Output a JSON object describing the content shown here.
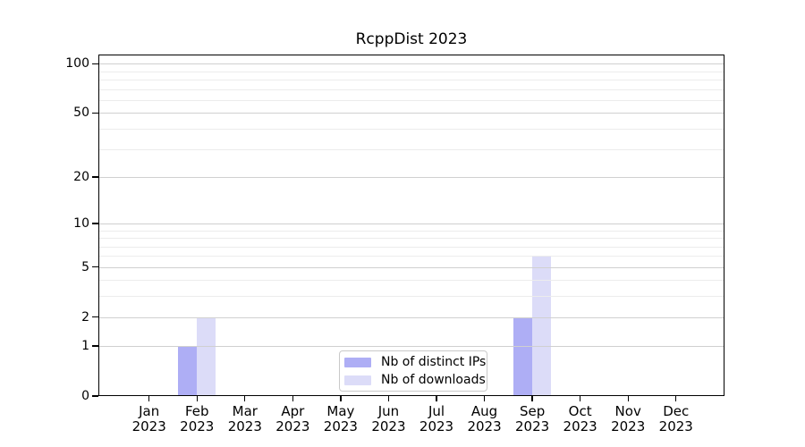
{
  "chart_data": {
    "type": "bar",
    "title": "RcppDist 2023",
    "categories": [
      {
        "line1": "Jan",
        "line2": "2023"
      },
      {
        "line1": "Feb",
        "line2": "2023"
      },
      {
        "line1": "Mar",
        "line2": "2023"
      },
      {
        "line1": "Apr",
        "line2": "2023"
      },
      {
        "line1": "May",
        "line2": "2023"
      },
      {
        "line1": "Jun",
        "line2": "2023"
      },
      {
        "line1": "Jul",
        "line2": "2023"
      },
      {
        "line1": "Aug",
        "line2": "2023"
      },
      {
        "line1": "Sep",
        "line2": "2023"
      },
      {
        "line1": "Oct",
        "line2": "2023"
      },
      {
        "line1": "Nov",
        "line2": "2023"
      },
      {
        "line1": "Dec",
        "line2": "2023"
      }
    ],
    "series": [
      {
        "name": "Nb of distinct IPs",
        "color": "#aeaef5",
        "values": [
          0,
          1,
          0,
          0,
          0,
          0,
          0,
          0,
          2,
          0,
          0,
          0
        ]
      },
      {
        "name": "Nb of downloads",
        "color": "#dcdcf8",
        "values": [
          0,
          2,
          0,
          0,
          0,
          0,
          0,
          0,
          6,
          0,
          0,
          0
        ]
      }
    ],
    "y_axis": {
      "scale": "log1p",
      "ylim": [
        0,
        114
      ],
      "major_ticks": [
        0,
        1,
        2,
        5,
        10,
        20,
        50,
        100
      ],
      "minor_gridlines": [
        3,
        4,
        6,
        7,
        8,
        9,
        30,
        40,
        60,
        70,
        80,
        90
      ]
    },
    "grid": {
      "on": true,
      "major_color": "#d0d0d0",
      "minor_color": "#ececec"
    },
    "legend": {
      "position": "lower center"
    }
  }
}
